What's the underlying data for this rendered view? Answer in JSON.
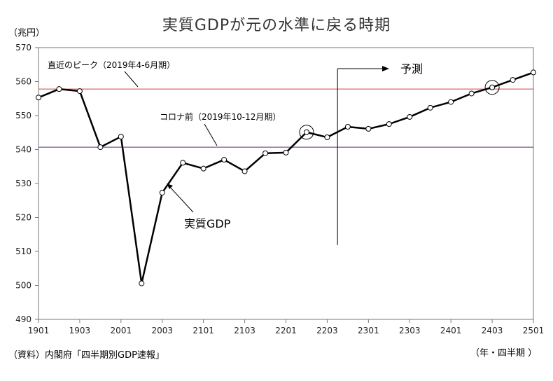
{
  "header": {
    "title": "実質GDPが元の水準に戻る時期",
    "y_unit": "（兆円）",
    "x_unit": "（年・四半期 ）"
  },
  "footer": {
    "source": "（資料）内閣府「四半期別GDP速報」"
  },
  "annotations": {
    "peak_label": "直近のピーク（2019年4-6月期）",
    "precovid_label": "コロナ前（2019年10-12月期）",
    "forecast_label": "予測",
    "series_label": "実質GDP"
  },
  "colors": {
    "peak_line": "#d04040",
    "precovid_line": "#5a2a7a",
    "series_line": "#000000",
    "background": "#ffffff"
  },
  "chart_data": {
    "type": "line",
    "title": "実質GDPが元の水準に戻る時期",
    "ylabel": "（兆円）",
    "xlabel": "（年・四半期 ）",
    "ylim": [
      490,
      570
    ],
    "yticks": [
      490,
      500,
      510,
      520,
      530,
      540,
      550,
      560,
      570
    ],
    "xticks": [
      "1901",
      "1903",
      "2001",
      "2003",
      "2101",
      "2103",
      "2201",
      "2203",
      "2301",
      "2303",
      "2401",
      "2403",
      "2501"
    ],
    "categories": [
      "1901",
      "1902",
      "1903",
      "1904",
      "2001",
      "2002",
      "2003",
      "2004",
      "2101",
      "2102",
      "2103",
      "2104",
      "2201",
      "2202",
      "2203",
      "2204",
      "2301",
      "2302",
      "2303",
      "2304",
      "2401",
      "2402",
      "2403",
      "2404",
      "2501"
    ],
    "series": [
      {
        "name": "実質GDP",
        "values": [
          555.3,
          557.8,
          557.2,
          540.7,
          543.8,
          500.6,
          527.3,
          536.1,
          534.4,
          537.0,
          533.6,
          538.9,
          539.1,
          545.1,
          543.6,
          546.7,
          546.1,
          547.5,
          549.6,
          552.3,
          554.0,
          556.5,
          558.3,
          560.5,
          562.7
        ]
      }
    ],
    "reference_lines": [
      {
        "label": "直近のピーク（2019年4-6月期）",
        "value": 557.8
      },
      {
        "label": "コロナ前（2019年10-12月期）",
        "value": 540.7
      }
    ],
    "forecast_start": "2204",
    "highlighted_points": [
      "2202",
      "2403"
    ],
    "grid": false
  }
}
